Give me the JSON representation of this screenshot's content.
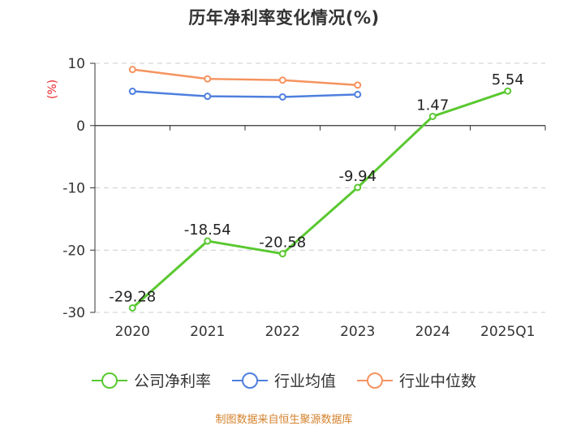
{
  "chart_data": {
    "type": "line",
    "title": "历年净利率变化情况(%)",
    "ylabel": "(%)",
    "xlabel": "",
    "categories": [
      "2020",
      "2021",
      "2022",
      "2023",
      "2024",
      "2025Q1"
    ],
    "ylim": [
      -30,
      10
    ],
    "yticks": [
      10,
      0,
      -10,
      -20,
      -30
    ],
    "series": [
      {
        "name": "公司净利率",
        "color": "#5ac831",
        "values": [
          -29.28,
          -18.54,
          -20.58,
          -9.94,
          1.47,
          5.54
        ],
        "labels": [
          "-29.28",
          "-18.54",
          "-20.58",
          "-9.94",
          "1.47",
          "5.54"
        ]
      },
      {
        "name": "行业均值",
        "color": "#4e7fde",
        "values": [
          5.5,
          4.7,
          4.6,
          5.0,
          null,
          null
        ]
      },
      {
        "name": "行业中位数",
        "color": "#f5935f",
        "values": [
          9.0,
          7.5,
          7.3,
          6.5,
          null,
          null
        ]
      }
    ]
  },
  "source": "制图数据来自恒生聚源数据库"
}
